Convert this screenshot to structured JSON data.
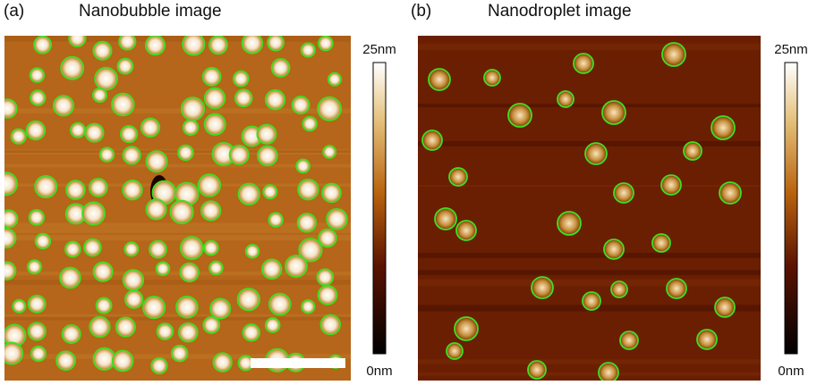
{
  "panels": [
    {
      "label": "(a)",
      "title": "Nanobubble image",
      "colorbar": {
        "max": "25nm",
        "min": "0nm"
      }
    },
    {
      "label": "(b)",
      "title": "Nanodroplet image",
      "colorbar": {
        "max": "25nm",
        "min": "0nm"
      }
    }
  ]
}
